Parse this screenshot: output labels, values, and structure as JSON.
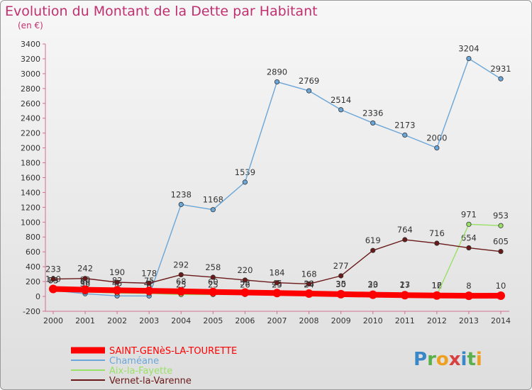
{
  "chart_data": {
    "type": "line",
    "title": "Evolution du Montant de la Dette par Habitant",
    "subtitle": "(en €)",
    "x": [
      "2000",
      "2001",
      "2002",
      "2003",
      "2004",
      "2005",
      "2006",
      "2007",
      "2008",
      "2009",
      "2010",
      "2011",
      "2012",
      "2013",
      "2014"
    ],
    "ylim": [
      -200,
      3400
    ],
    "yticks": [
      -200,
      0,
      200,
      400,
      600,
      800,
      1000,
      1200,
      1400,
      1600,
      1800,
      2000,
      2200,
      2400,
      2600,
      2800,
      3000,
      3200,
      3400
    ],
    "grid": false,
    "legend_position": "bottom-left",
    "series": [
      {
        "name": "SAINT-GENèS-LA-TOURETTE",
        "color": "#ff0000",
        "emphasis": true,
        "values": [
          100,
          90,
          82,
          75,
          68,
          60,
          53,
          45,
          38,
          30,
          23,
          17,
          12,
          8,
          10
        ]
      },
      {
        "name": "Chaméane",
        "color": "#6aa6d8",
        "values": [
          79,
          36,
          7,
          6,
          1238,
          1168,
          1539,
          2890,
          2769,
          2514,
          2336,
          2173,
          2000,
          3204,
          2931
        ]
      },
      {
        "name": "Aix-la-Fayette",
        "color": "#99e066",
        "values": [
          83,
          60,
          45,
          40,
          25,
          25,
          26,
          25,
          24,
          35,
          30,
          23,
          16,
          971,
          953
        ]
      },
      {
        "name": "Vernet-la-Varenne",
        "color": "#6a1818",
        "values": [
          233,
          242,
          190,
          178,
          292,
          258,
          220,
          184,
          168,
          277,
          619,
          764,
          716,
          654,
          605
        ]
      }
    ],
    "data_labels": {
      "Chaméane": [
        "79",
        "36",
        "7",
        "6",
        "1238",
        "1168",
        "1539",
        "2890",
        "2769",
        "2514",
        "2336",
        "2173",
        "2000",
        "3204",
        "2931"
      ],
      "Aix-la-Fayette": [
        "83",
        "60",
        "45",
        "40",
        "25",
        "25",
        "26",
        "25",
        "24",
        "35",
        "30",
        "23",
        "16",
        "971",
        "953"
      ],
      "Vernet-la-Varenne": [
        "233",
        "242",
        "190",
        "178",
        "292",
        "258",
        "220",
        "184",
        "168",
        "277",
        "619",
        "764",
        "716",
        "654",
        "605"
      ],
      "SAINT-GENèS-LA-TOURETTE": [
        "100",
        "90",
        "82",
        "75",
        "68",
        "60",
        "53",
        "45",
        "38",
        "30",
        "23",
        "17",
        "12",
        "8",
        "10"
      ]
    }
  },
  "logo": {
    "text": "Proxiti",
    "colors": [
      "#3a87c8",
      "#5ab04a",
      "#f0a020",
      "#d84040",
      "#3a87c8",
      "#5ab04a",
      "#f0a020"
    ]
  }
}
